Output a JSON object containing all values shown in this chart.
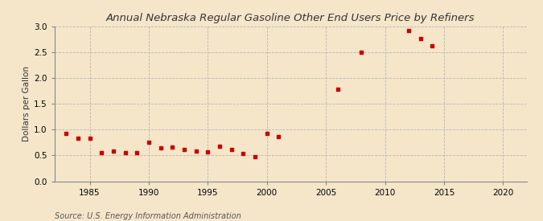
{
  "title": "Annual Nebraska Regular Gasoline Other End Users Price by Refiners",
  "ylabel": "Dollars per Gallon",
  "source": "Source: U.S. Energy Information Administration",
  "background_color": "#f5e6ca",
  "marker_color": "#cc0000",
  "xlim": [
    1982,
    2022
  ],
  "ylim": [
    0.0,
    3.0
  ],
  "xticks": [
    1985,
    1990,
    1995,
    2000,
    2005,
    2010,
    2015,
    2020
  ],
  "yticks": [
    0.0,
    0.5,
    1.0,
    1.5,
    2.0,
    2.5,
    3.0
  ],
  "years": [
    1983,
    1984,
    1985,
    1986,
    1987,
    1988,
    1989,
    1990,
    1991,
    1992,
    1993,
    1994,
    1995,
    1996,
    1997,
    1998,
    1999,
    2000,
    2001,
    2006,
    2008,
    2012,
    2013,
    2014
  ],
  "values": [
    0.93,
    0.84,
    0.84,
    0.55,
    0.58,
    0.56,
    0.55,
    0.75,
    0.65,
    0.67,
    0.61,
    0.59,
    0.57,
    0.68,
    0.62,
    0.54,
    0.47,
    0.93,
    0.87,
    1.78,
    2.5,
    2.92,
    2.77,
    2.63
  ],
  "title_fontsize": 9.5,
  "ylabel_fontsize": 7.5,
  "tick_fontsize": 7.5,
  "source_fontsize": 7
}
